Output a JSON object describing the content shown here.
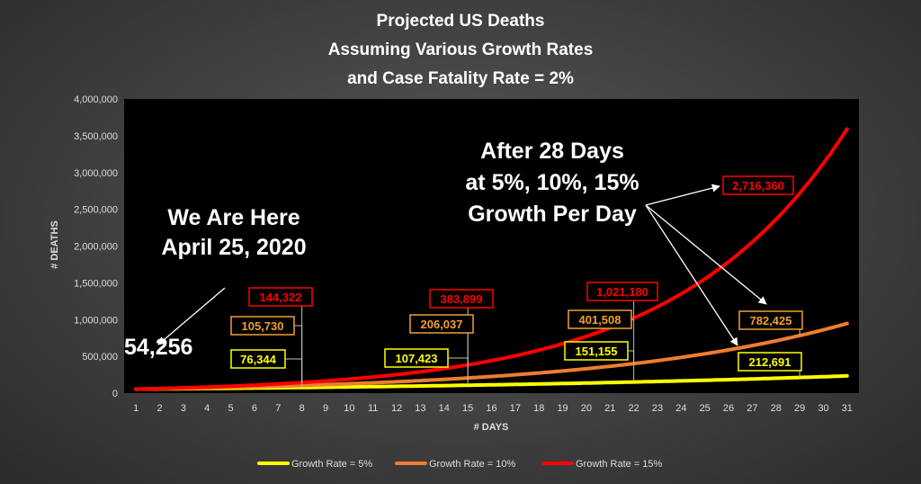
{
  "chart_data": {
    "type": "line",
    "title": [
      "Projected US Deaths",
      "Assuming Various Growth Rates",
      "and Case Fatality Rate = 2%"
    ],
    "xlabel": "# DAYS",
    "ylabel": "# DEATHS",
    "x": [
      1,
      2,
      3,
      4,
      5,
      6,
      7,
      8,
      9,
      10,
      11,
      12,
      13,
      14,
      15,
      16,
      17,
      18,
      19,
      20,
      21,
      22,
      23,
      24,
      25,
      26,
      27,
      28,
      29,
      30,
      31
    ],
    "ylim": [
      0,
      4000000
    ],
    "yticks": [
      0,
      500000,
      1000000,
      1500000,
      2000000,
      2500000,
      3000000,
      3500000,
      4000000
    ],
    "ytick_labels": [
      "0",
      "500,000",
      "1,000,000",
      "1,500,000",
      "2,000,000",
      "2,500,000",
      "3,000,000",
      "3,500,000",
      "4,000,000"
    ],
    "start_value": 54256,
    "series": [
      {
        "name": "Growth Rate = 5%",
        "rate": 0.05,
        "color": "#ffff00"
      },
      {
        "name": "Growth Rate = 10%",
        "rate": 0.1,
        "color": "#ed7d31"
      },
      {
        "name": "Growth Rate = 15%",
        "rate": 0.15,
        "color": "#ff0000"
      }
    ],
    "legend_position": "bottom",
    "grid": false,
    "data_labels": [
      {
        "text": "144,322",
        "x": 8,
        "y": 144322,
        "color": "#ff0000"
      },
      {
        "text": "105,730",
        "x": 8,
        "y": 105730,
        "color": "#f0a030"
      },
      {
        "text": "76,344",
        "x": 8,
        "y": 76344,
        "color": "#ffff00"
      },
      {
        "text": "383,899",
        "x": 15,
        "y": 383899,
        "color": "#ff0000"
      },
      {
        "text": "206,037",
        "x": 15,
        "y": 206037,
        "color": "#f0a030"
      },
      {
        "text": "107,423",
        "x": 15,
        "y": 107423,
        "color": "#ffff00"
      },
      {
        "text": "1,021,180",
        "x": 22,
        "y": 1021180,
        "color": "#ff0000"
      },
      {
        "text": "401,508",
        "x": 22,
        "y": 401508,
        "color": "#f0a030"
      },
      {
        "text": "151,155",
        "x": 22,
        "y": 151155,
        "color": "#ffff00"
      },
      {
        "text": "2,716,360",
        "x": 29,
        "y": 2716360,
        "color": "#ff0000"
      },
      {
        "text": "782,425",
        "x": 29,
        "y": 782425,
        "color": "#f0a030"
      },
      {
        "text": "212,691",
        "x": 29,
        "y": 212691,
        "color": "#ffff00"
      }
    ],
    "annotations": {
      "start_label": "54,256",
      "here_line1": "We Are Here",
      "here_line2": "April 25, 2020",
      "after_line1": "After 28 Days",
      "after_line2": "at 5%, 10%, 15%",
      "after_line3": "Growth Per Day"
    }
  }
}
